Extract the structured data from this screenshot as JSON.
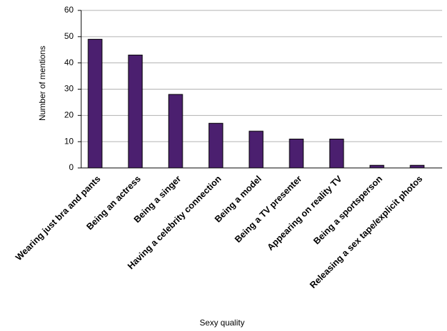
{
  "chart_data": {
    "type": "bar",
    "x_label": "Sexy quality",
    "y_label": "Number of mentions",
    "categories": [
      "Wearing just bra and pants",
      "Being an actress",
      "Being a singer",
      "Having a celebrity connection",
      "Being a model",
      "Being a TV presenter",
      "Appearing on reality TV",
      "Being a sportsperson",
      "Releasing a sex tape/explicit photos"
    ],
    "values": [
      49,
      43,
      28,
      17,
      14,
      11,
      11,
      1,
      1
    ],
    "color": "#4b1f6f",
    "ylim": [
      0,
      60
    ],
    "yticks": [
      0,
      10,
      20,
      30,
      40,
      50,
      60
    ],
    "grid": true
  }
}
